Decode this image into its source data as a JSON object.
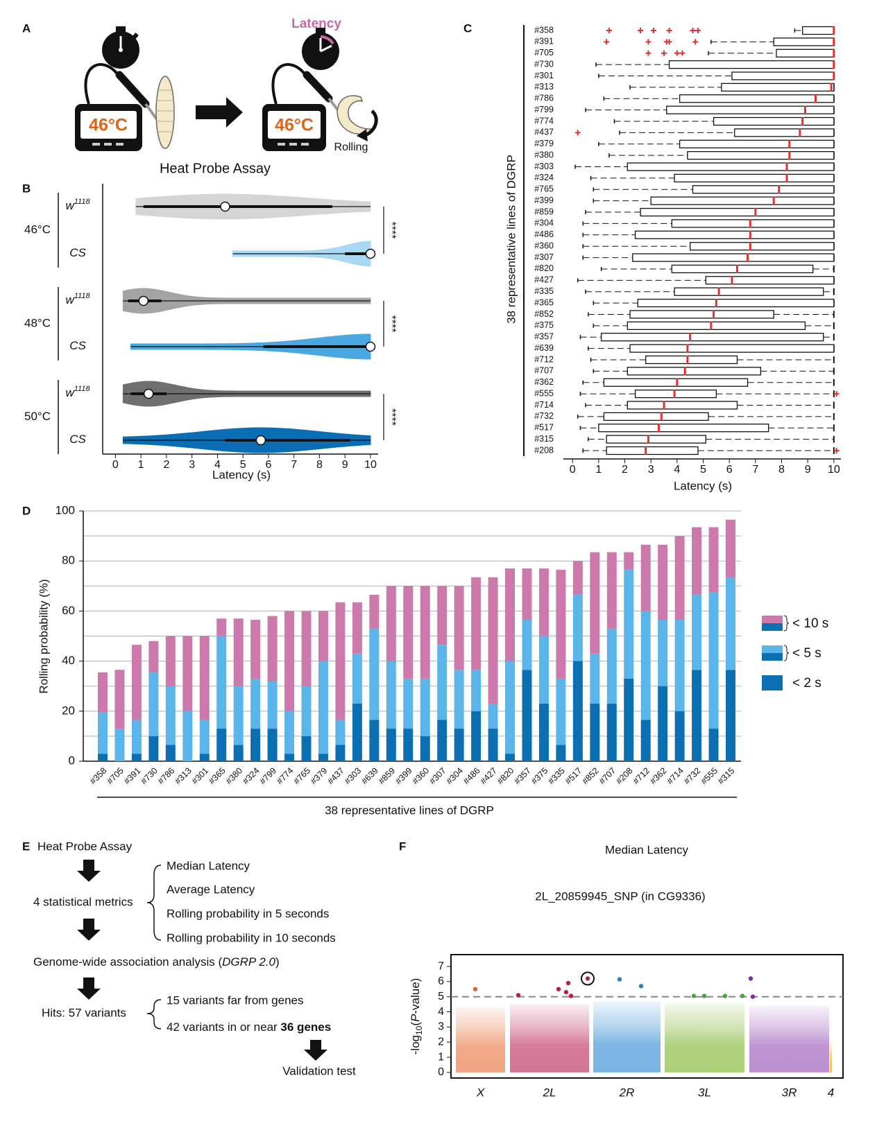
{
  "panel_labels": [
    "A",
    "B",
    "C",
    "D",
    "E",
    "F"
  ],
  "panel_a": {
    "latency_label": "Latency",
    "temperature": "46°C",
    "rolling_label": "Rolling",
    "caption": "Heat Probe Assay"
  },
  "panel_e": {
    "start": "Heat Probe Assay",
    "metrics_label": "4 statistical metrics",
    "metrics": [
      "Median Latency",
      "Average Latency",
      "Rolling probability in 5 seconds",
      "Rolling probability in 10 seconds"
    ],
    "gwas": [
      "Genome-wide association analysis (",
      "DGRP 2.0",
      ")"
    ],
    "hits_label": "Hits: 57 variants",
    "hits_far": "15 variants far from genes",
    "hits_near": [
      "42 variants in or near ",
      "36 genes"
    ],
    "end": "Validation test"
  },
  "chart_data": [
    {
      "type": "violin",
      "xlabel": "Latency (s)",
      "xlim": [
        -0.5,
        10.3
      ],
      "xticks": [
        0,
        1,
        2,
        3,
        4,
        5,
        6,
        7,
        8,
        9,
        10
      ],
      "groups": [
        {
          "temperature": "46°C",
          "significance": "****",
          "genotypes": [
            {
              "label": "w",
              "label_sup": "1118",
              "color": "#d4d4d4",
              "min": 0.8,
              "q1": 1.1,
              "median": 4.3,
              "q3": 8.5,
              "max": 10
            },
            {
              "label": "CS",
              "color": "#a9d9f2",
              "min": 4.6,
              "q1": 9.0,
              "median": 10,
              "q3": 10,
              "max": 10
            }
          ]
        },
        {
          "temperature": "48°C",
          "significance": "****",
          "genotypes": [
            {
              "label": "w",
              "label_sup": "1118",
              "color": "#a3a3a3",
              "min": 0.3,
              "q1": 0.5,
              "median": 1.1,
              "q3": 1.8,
              "max": 10
            },
            {
              "label": "CS",
              "color": "#4aa7e0",
              "min": 0.6,
              "q1": 5.8,
              "median": 10,
              "q3": 10,
              "max": 10
            }
          ]
        },
        {
          "temperature": "50°C",
          "significance": "****",
          "genotypes": [
            {
              "label": "w",
              "label_sup": "1118",
              "color": "#6f6f6f",
              "min": 0.3,
              "q1": 0.6,
              "median": 1.3,
              "q3": 2.0,
              "max": 10
            },
            {
              "label": "CS",
              "color": "#0b6db3",
              "min": 0.3,
              "q1": 4.3,
              "median": 5.7,
              "q3": 9.2,
              "max": 10
            }
          ]
        }
      ]
    },
    {
      "type": "box",
      "xlabel": "Latency (s)",
      "ylabel": "38 representative lines of DGRP",
      "xlim": [
        -0.35,
        10.27
      ],
      "xticks": [
        0,
        1,
        2,
        3,
        4,
        5,
        6,
        7,
        8,
        9,
        10
      ],
      "median_color": "#e03030",
      "categories": [
        "#358",
        "#391",
        "#705",
        "#730",
        "#301",
        "#313",
        "#786",
        "#799",
        "#774",
        "#437",
        "#379",
        "#380",
        "#303",
        "#324",
        "#765",
        "#399",
        "#859",
        "#304",
        "#486",
        "#360",
        "#307",
        "#820",
        "#427",
        "#335",
        "#365",
        "#852",
        "#375",
        "#357",
        "#639",
        "#712",
        "#707",
        "#362",
        "#555",
        "#714",
        "#732",
        "#517",
        "#315",
        "#208"
      ],
      "median": [
        10,
        10,
        10,
        10,
        10,
        9.9,
        9.3,
        8.9,
        8.8,
        8.7,
        8.3,
        8.3,
        8.2,
        8.2,
        7.9,
        7.7,
        7,
        6.8,
        6.8,
        6.8,
        6.7,
        6.3,
        6.1,
        5.6,
        5.5,
        5.4,
        5.3,
        4.5,
        4.4,
        4.4,
        4.3,
        4,
        3.9,
        3.5,
        3.4,
        3.3,
        2.9,
        2.8
      ],
      "q1": [
        8.8,
        7.7,
        7.8,
        3.7,
        6.1,
        5.7,
        4.1,
        3.6,
        5.4,
        6.2,
        4.1,
        4.4,
        2.1,
        3.9,
        4.6,
        3,
        2.6,
        3.8,
        2.4,
        4.5,
        2.3,
        3.8,
        5.1,
        3.9,
        2.5,
        2.2,
        2.1,
        1.1,
        2.2,
        2.8,
        2.1,
        1.2,
        2.4,
        2.1,
        1.2,
        1,
        1.3,
        1.3
      ],
      "q3": [
        10,
        10,
        10,
        10,
        10,
        10,
        10,
        10,
        10,
        10,
        10,
        10,
        10,
        10,
        10,
        10,
        10,
        10,
        10,
        10,
        10,
        9.2,
        10,
        9.6,
        10,
        7.7,
        8.9,
        9.6,
        10,
        6.3,
        7.2,
        6.7,
        5.5,
        6.3,
        5.2,
        7.5,
        5.1,
        4.8
      ],
      "whisker_low": [
        8.5,
        5.3,
        5.2,
        0.9,
        1,
        2.2,
        1.2,
        0.5,
        1.6,
        1.8,
        1,
        1.4,
        0.1,
        0.7,
        0.8,
        0.8,
        0.5,
        0.4,
        0.4,
        0.4,
        0.4,
        1.1,
        0.2,
        0.5,
        0.8,
        0.6,
        0.8,
        0.3,
        0.6,
        0.7,
        0.8,
        0.4,
        0.3,
        0.5,
        0.2,
        0.3,
        0.6,
        0.4
      ],
      "whisker_high": [
        10,
        10,
        10,
        10,
        10,
        10,
        10,
        10,
        10,
        10,
        10,
        10,
        10,
        10,
        10,
        10,
        10,
        10,
        10,
        10,
        10,
        10,
        10,
        10,
        10,
        10,
        10,
        10,
        10,
        10,
        10,
        10,
        10,
        10,
        10,
        10,
        10,
        10
      ],
      "outliers": [
        [
          1.4,
          2.6,
          3.1,
          3.7,
          4.6,
          4.8
        ],
        [
          1.3,
          2.9,
          3.6,
          3.7,
          4.7
        ],
        [
          2.9,
          3.5,
          4.0,
          4.2
        ],
        [],
        [],
        [],
        [],
        [],
        [],
        [
          0.2
        ],
        [],
        [],
        [],
        [],
        [],
        [],
        [],
        [],
        [],
        [],
        [],
        [],
        [],
        [],
        [],
        [],
        [],
        [],
        [],
        [],
        [],
        [],
        [
          10.1
        ],
        [],
        [],
        [],
        [],
        [
          10.1
        ]
      ]
    },
    {
      "type": "bar_stacked",
      "ylabel": "Rolling probability (%)",
      "xlabel": "38 representative lines of DGRP",
      "ylim": [
        0,
        100
      ],
      "yticks": [
        0,
        20,
        40,
        60,
        80,
        100
      ],
      "grid_minor": [
        10,
        30,
        50,
        70,
        90
      ],
      "grid": true,
      "categories": [
        "#358",
        "#705",
        "#391",
        "#730",
        "#786",
        "#313",
        "#301",
        "#365",
        "#380",
        "#324",
        "#799",
        "#774",
        "#765",
        "#379",
        "#437",
        "#303",
        "#639",
        "#859",
        "#399",
        "#360",
        "#307",
        "#304",
        "#486",
        "#427",
        "#820",
        "#357",
        "#375",
        "#335",
        "#517",
        "#852",
        "#707",
        "#208",
        "#712",
        "#362",
        "#714",
        "#732",
        "#555",
        "#315"
      ],
      "series": [
        {
          "name": "< 2 s",
          "color": "#0b6fb2",
          "values": [
            3,
            0,
            3,
            10,
            6.5,
            0,
            3,
            13,
            6.5,
            13,
            13,
            3,
            10,
            3,
            6.5,
            23,
            16.5,
            13,
            13,
            10,
            16.5,
            13,
            20,
            13,
            3,
            36.5,
            23,
            6.5,
            40,
            23,
            23,
            33,
            16.5,
            30,
            20,
            36.5,
            13,
            36.5
          ]
        },
        {
          "name": "< 5 s",
          "color": "#5bb5e8",
          "values": [
            16.5,
            13,
            13.5,
            25.5,
            23.5,
            20,
            13.5,
            37,
            23.5,
            20,
            19,
            17,
            20,
            37,
            10,
            20,
            36.5,
            27,
            20,
            23,
            30,
            23.5,
            16.5,
            10,
            37,
            20,
            27,
            26.5,
            26.5,
            20,
            30,
            43.5,
            43.5,
            26.5,
            36.5,
            30,
            54.5,
            37
          ]
        },
        {
          "name": "< 10 s",
          "color": "#cc79ac",
          "values": [
            16,
            23.5,
            30,
            12.5,
            20,
            30,
            33.5,
            7,
            27,
            23.5,
            26,
            40,
            30,
            20,
            47,
            20.5,
            13.5,
            30,
            37,
            37,
            23.5,
            33.5,
            37,
            50.5,
            37,
            20.5,
            27,
            43.5,
            13.5,
            40.5,
            30.5,
            7,
            26.5,
            30,
            33.5,
            27,
            26,
            23
          ]
        }
      ],
      "legend": "right"
    },
    {
      "type": "manhattan",
      "title": "Median Latency",
      "annotation": "2L_20859945_SNP (in CG9336)",
      "ylabel": [
        "-log",
        "10",
        "(",
        "P",
        "-value)"
      ],
      "ylim": [
        -0.37,
        7.78
      ],
      "yticks": [
        0,
        1,
        2,
        3,
        4,
        5,
        6,
        7
      ],
      "xlim": [
        0,
        565
      ],
      "threshold": 5,
      "chromosomes": [
        {
          "name": "X",
          "color": "#f0a583",
          "hit_color": "#e0622d",
          "start": 7,
          "end": 78,
          "max": 4.3
        },
        {
          "name": "2L",
          "color": "#d27594",
          "hit_color": "#b8203e",
          "start": 85,
          "end": 199,
          "max": 4.5
        },
        {
          "name": "2R",
          "color": "#79b4e2",
          "hit_color": "#2a82c4",
          "start": 205,
          "end": 302,
          "max": 4.7
        },
        {
          "name": "3L",
          "color": "#acd07a",
          "hit_color": "#4fa040",
          "start": 308,
          "end": 423,
          "max": 4.6
        },
        {
          "name": "3R",
          "color": "#bb8fcf",
          "hit_color": "#7f2d9e",
          "start": 430,
          "end": 545,
          "max": 4.4
        },
        {
          "name": "4",
          "color": "#f1c35c",
          "hit_color": "#e0a020",
          "start": 546,
          "end": 549,
          "max": 2.1
        }
      ],
      "hits": {
        "x": [
          35,
          97,
          155,
          166,
          169,
          173,
          197,
          243,
          274,
          350,
          365,
          395,
          420,
          432,
          435
        ],
        "values": [
          5.5,
          5.1,
          5.5,
          5.3,
          5.9,
          5.05,
          6.2,
          6.15,
          5.7,
          5.05,
          5.05,
          5.05,
          5.05,
          6.2,
          5.0
        ],
        "chromosome": [
          0,
          1,
          1,
          1,
          1,
          1,
          1,
          2,
          2,
          3,
          3,
          3,
          3,
          4,
          4
        ]
      },
      "highlight": 6
    }
  ]
}
